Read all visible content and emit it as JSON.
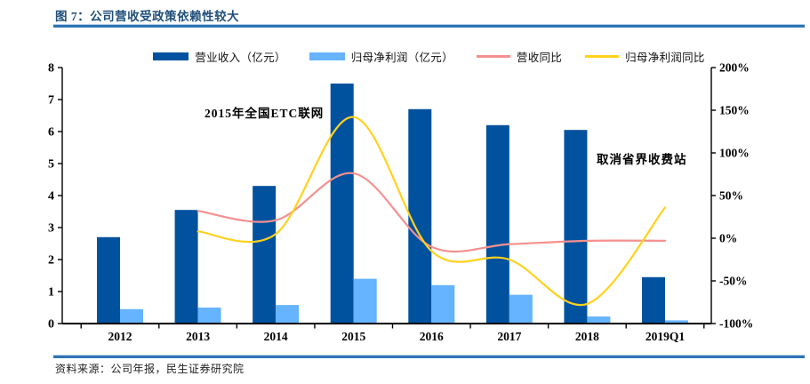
{
  "header": {
    "title": "图 7：公司营收受政策依赖性较大"
  },
  "legend": {
    "items": [
      {
        "label": "营业收入（亿元）",
        "swatch": "bar",
        "color": "#00529E"
      },
      {
        "label": "归母净利润（亿元）",
        "swatch": "bar",
        "color": "#66B3FF"
      },
      {
        "label": "营收同比",
        "swatch": "line",
        "color": "#F5908F"
      },
      {
        "label": "归母净利润同比",
        "swatch": "line",
        "color": "#FFD21E"
      }
    ]
  },
  "annotations": [
    {
      "text": "2015年全国ETC联网"
    },
    {
      "text": "取消省界收费站"
    }
  ],
  "footer": {
    "source": "资料来源：公司年报，民生证券研究院"
  },
  "colors": {
    "title": "#1F4E79",
    "rule": "#2E74B5",
    "axis": "#000000"
  },
  "chart_data": {
    "type": "combo_bar_line",
    "title": "图 7：公司营收受政策依赖性较大",
    "categories": [
      "2012",
      "2013",
      "2014",
      "2015",
      "2016",
      "2017",
      "2018",
      "2019Q1"
    ],
    "series": [
      {
        "name": "营业收入（亿元）",
        "type": "bar",
        "axis": "left",
        "color": "#00529E",
        "values": [
          2.7,
          3.55,
          4.3,
          7.5,
          6.7,
          6.2,
          6.05,
          1.45
        ]
      },
      {
        "name": "归母净利润（亿元）",
        "type": "bar",
        "axis": "left",
        "color": "#66B3FF",
        "values": [
          0.45,
          0.5,
          0.58,
          1.4,
          1.2,
          0.9,
          0.22,
          0.1
        ]
      },
      {
        "name": "营收同比",
        "type": "line",
        "axis": "right",
        "color": "#F5908F",
        "values": [
          null,
          32,
          21,
          76,
          -10,
          -7,
          -3,
          -3
        ]
      },
      {
        "name": "归母净利润同比",
        "type": "line",
        "axis": "right",
        "color": "#FFD21E",
        "values": [
          null,
          8,
          5,
          142,
          -15,
          -25,
          -77,
          36
        ]
      }
    ],
    "left_axis": {
      "min": 0,
      "max": 8,
      "ticks": [
        0,
        1,
        2,
        3,
        4,
        5,
        6,
        7,
        8
      ]
    },
    "right_axis": {
      "min": -100,
      "max": 200,
      "ticks": [
        200,
        150,
        100,
        50,
        0,
        -50,
        -100
      ],
      "tick_labels": [
        "200%",
        "150%",
        "100%",
        "50%",
        "0%",
        "-50%",
        "-100%"
      ]
    },
    "legend_position": "top",
    "grid": false
  }
}
